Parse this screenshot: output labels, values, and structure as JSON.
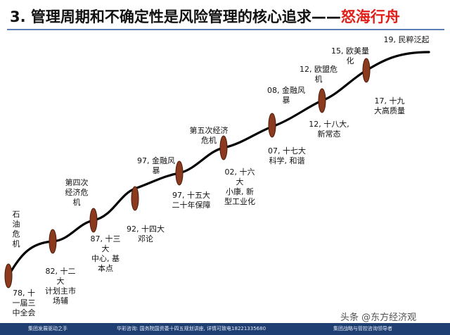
{
  "title": {
    "main": "3. 管理周期和不确定性是风险管理的核心追求",
    "dash": "——",
    "accent": "怒海行舟"
  },
  "milestones": [
    {
      "label": "石\n油\n危\n机"
    },
    {
      "label": "78, 十\n一届三\n中全会"
    },
    {
      "label": "82, 十二\n大\n计划主市\n场辅"
    },
    {
      "label": "第四次\n经济危\n机"
    },
    {
      "label": "87, 十三\n大\n中心, 基\n本点"
    },
    {
      "label": "92, 十四大\n邓论"
    },
    {
      "label": "97, 金融风\n暴"
    },
    {
      "label": "97, 十五大\n二十年保障"
    },
    {
      "label": "第五次经济\n危机"
    },
    {
      "label": "02, 十六\n大\n小康, 新\n型工业化"
    },
    {
      "label": "08, 金融风\n暴"
    },
    {
      "label": "07, 十七大\n科学, 和谐"
    },
    {
      "label": "12, 欧盟危\n机"
    },
    {
      "label": "12, 十八大,\n新常态"
    },
    {
      "label": "15, 欧美量\n化"
    },
    {
      "label": "17, 十九\n大高质量"
    },
    {
      "label": "19, 民粹泛起"
    }
  ],
  "footer": {
    "left": "集团发展驱动之手",
    "center": "华彩咨询: 国务院国资委十四五规划讲座, 详情可致电18221335680",
    "right": "集团战略与管控咨询领导者"
  },
  "watermark": "头条 @东方经济观",
  "colors": {
    "title_accent": "#e0201a",
    "node_fill": "#8b3a1e",
    "curve": "#000000",
    "footer_bg": "#1f3f73"
  }
}
